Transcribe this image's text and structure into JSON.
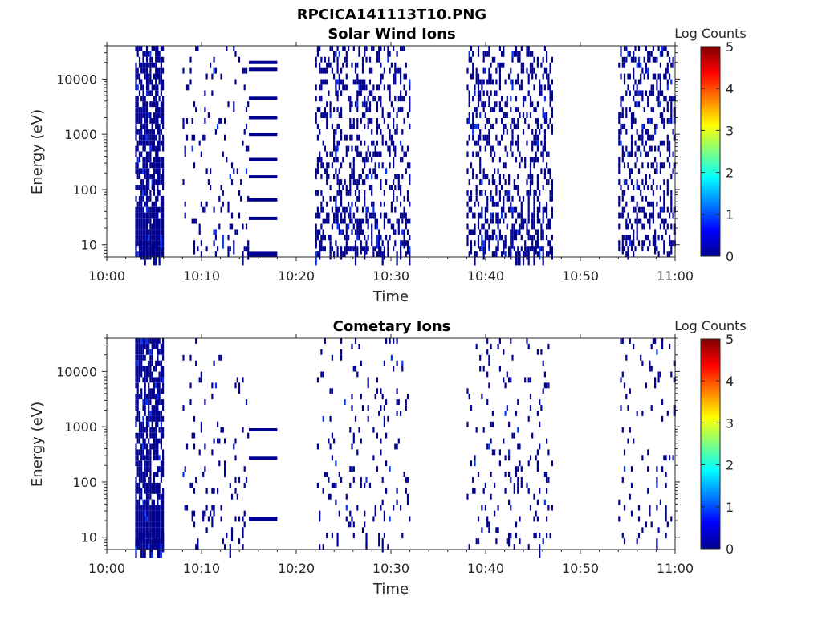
{
  "figure": {
    "title": "RPCICA141113T10.PNG"
  },
  "colorbar": {
    "label": "Log Counts",
    "ticks": [
      "0",
      "1",
      "2",
      "3",
      "4",
      "5"
    ],
    "range": [
      0,
      5
    ],
    "colormap": "jet"
  },
  "chart_data": [
    {
      "type": "heatmap",
      "title": "Solar Wind Ions",
      "xlabel": "Time",
      "ylabel": "Energy (eV)",
      "x_ticks": [
        "10:00",
        "10:10",
        "10:20",
        "10:30",
        "10:40",
        "10:50",
        "11:00"
      ],
      "y_ticks": [
        "10",
        "100",
        "1000",
        "10000"
      ],
      "y_scale": "log",
      "ylim": [
        6,
        40000
      ],
      "xlim": [
        "10:00",
        "11:00"
      ],
      "z_label": "Log Counts",
      "z_range": [
        0,
        5
      ],
      "approximate_values": "mostly 0 to 0.5 (dark blue), sparse speckle",
      "active_intervals": [
        {
          "start": "10:03",
          "end": "10:06",
          "fill": "dense"
        },
        {
          "start": "10:08",
          "end": "10:15",
          "fill": "sparse"
        },
        {
          "start": "10:15",
          "end": "10:18",
          "fill": "bands"
        },
        {
          "start": "10:22",
          "end": "10:32",
          "fill": "medium"
        },
        {
          "start": "10:38",
          "end": "10:47",
          "fill": "medium"
        },
        {
          "start": "10:54",
          "end": "11:00",
          "fill": "medium"
        }
      ],
      "band_energies_eV": [
        7,
        30,
        65,
        170,
        350,
        1000,
        2000,
        4500,
        15000,
        20000
      ]
    },
    {
      "type": "heatmap",
      "title": "Cometary Ions",
      "xlabel": "Time",
      "ylabel": "Energy (eV)",
      "x_ticks": [
        "10:00",
        "10:10",
        "10:20",
        "10:30",
        "10:40",
        "10:50",
        "11:00"
      ],
      "y_ticks": [
        "10",
        "100",
        "1000",
        "10000"
      ],
      "y_scale": "log",
      "ylim": [
        6,
        40000
      ],
      "xlim": [
        "10:00",
        "11:00"
      ],
      "z_label": "Log Counts",
      "z_range": [
        0,
        5
      ],
      "approximate_values": "mostly 0 to 0.5 (dark blue), sparse speckle",
      "active_intervals": [
        {
          "start": "10:03",
          "end": "10:06",
          "fill": "dense"
        },
        {
          "start": "10:08",
          "end": "10:15",
          "fill": "sparse"
        },
        {
          "start": "10:15",
          "end": "10:18",
          "fill": "bands"
        },
        {
          "start": "10:22",
          "end": "10:32",
          "fill": "sparse"
        },
        {
          "start": "10:38",
          "end": "10:47",
          "fill": "sparse"
        },
        {
          "start": "10:54",
          "end": "11:00",
          "fill": "sparse"
        }
      ],
      "band_energies_eV": [
        21,
        22,
        270,
        880
      ]
    }
  ]
}
